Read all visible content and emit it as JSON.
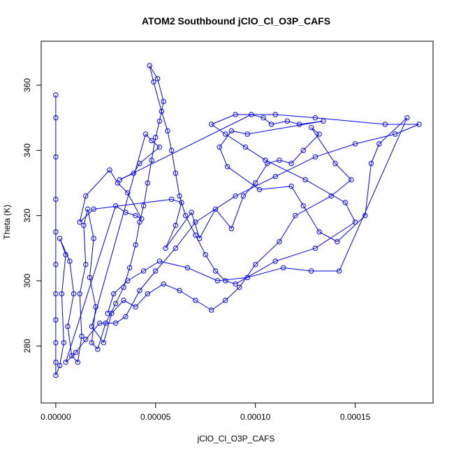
{
  "chart_data": {
    "type": "scatter",
    "title": "ATOM2 Southbound jClO_Cl_O3P_CAFS",
    "xlabel": "jClO_Cl_O3P_CAFS",
    "ylabel": "Theta (K)",
    "xlim": [
      -7.3e-06,
      0.000189
    ],
    "ylim": [
      262.5,
      373.5
    ],
    "xticks": [
      0,
      5e-05,
      0.0001,
      0.00015
    ],
    "xtick_labels": [
      "0.00000",
      "0.00005",
      "0.00010",
      "0.00015"
    ],
    "yticks": [
      280,
      300,
      320,
      340,
      360
    ],
    "ytick_labels": [
      "280",
      "300",
      "320",
      "340",
      "360"
    ],
    "grid": false,
    "legend": "none",
    "style": {
      "marker": "open-circle",
      "connected": true,
      "color": "#0000ff"
    },
    "series": [
      {
        "name": "",
        "points": [
          [
            0.0,
            357
          ],
          [
            0.0,
            350
          ],
          [
            0.0,
            338
          ],
          [
            0.0,
            325
          ],
          [
            0.0,
            315
          ],
          [
            0.0,
            305
          ],
          [
            0.0,
            296
          ],
          [
            0.0,
            288
          ],
          [
            0.0,
            281
          ],
          [
            0.0,
            275
          ],
          [
            0.0,
            271
          ],
          [
            2e-06,
            274
          ],
          [
            4e-06,
            281
          ],
          [
            3e-06,
            296
          ],
          [
            5e-06,
            308
          ],
          [
            2e-06,
            313
          ],
          [
            7e-06,
            306
          ],
          [
            9e-06,
            296
          ],
          [
            6e-06,
            286
          ],
          [
            8e-06,
            277
          ],
          [
            1.1e-05,
            275
          ],
          [
            1.3e-05,
            283
          ],
          [
            1.2e-05,
            296
          ],
          [
            1.5e-05,
            305
          ],
          [
            1.4e-05,
            317
          ],
          [
            1.6e-05,
            322
          ],
          [
            1.9e-05,
            313
          ],
          [
            1.7e-05,
            301
          ],
          [
            2e-05,
            292
          ],
          [
            1.8e-05,
            281
          ],
          [
            2.1e-05,
            279
          ],
          [
            2.5e-05,
            287
          ],
          [
            3e-05,
            293
          ],
          [
            3.4e-05,
            298
          ],
          [
            3.7e-05,
            304
          ],
          [
            4e-05,
            311
          ],
          [
            4.2e-05,
            318
          ],
          [
            4.4e-05,
            323
          ],
          [
            4.6e-05,
            330
          ],
          [
            4.8e-05,
            337
          ],
          [
            5e-05,
            344
          ],
          [
            5.2e-05,
            349
          ],
          [
            5.4e-05,
            355
          ],
          [
            5.1e-05,
            362
          ],
          [
            4.7e-05,
            366
          ],
          [
            4.9e-05,
            361
          ],
          [
            5.3e-05,
            352
          ],
          [
            5.6e-05,
            346
          ],
          [
            5.8e-05,
            340
          ],
          [
            6e-05,
            333
          ],
          [
            6.2e-05,
            326
          ],
          [
            6.5e-05,
            320
          ],
          [
            7e-05,
            314
          ],
          [
            7.5e-05,
            308
          ],
          [
            8e-05,
            303
          ],
          [
            8.5e-05,
            300
          ],
          [
            9e-05,
            299
          ],
          [
            0.00011,
            306
          ],
          [
            0.00013,
            310
          ],
          [
            0.00015,
            318
          ],
          [
            0.000145,
            324
          ],
          [
            0.000125,
            331
          ],
          [
            0.000105,
            337
          ],
          [
            9.5e-05,
            341
          ],
          [
            8.5e-05,
            345
          ],
          [
            7.8e-05,
            348
          ],
          [
            9e-05,
            351
          ],
          [
            0.00011,
            351
          ],
          [
            0.00013,
            350
          ],
          [
            0.000165,
            348
          ],
          [
            0.000182,
            348
          ],
          [
            0.00017,
            345
          ],
          [
            0.00015,
            342
          ],
          [
            0.00013,
            338
          ],
          [
            0.00011,
            332
          ],
          [
            9e-05,
            326
          ],
          [
            7e-05,
            318
          ],
          [
            6e-05,
            310
          ],
          [
            5e-05,
            303
          ],
          [
            4.2e-05,
            297
          ],
          [
            3.5e-05,
            289
          ],
          [
            3e-05,
            287
          ],
          [
            2.2e-05,
            287
          ],
          [
            1.5e-05,
            282
          ],
          [
            1e-05,
            278
          ],
          [
            5e-06,
            275
          ],
          [
            3e-05,
            323
          ],
          [
            3.5e-05,
            321
          ],
          [
            4e-05,
            320
          ],
          [
            4.3e-05,
            319
          ],
          [
            3.6e-05,
            327
          ],
          [
            3.1e-05,
            330
          ],
          [
            2.7e-05,
            334
          ],
          [
            1.5e-05,
            326
          ],
          [
            1.2e-05,
            318
          ],
          [
            1.9e-05,
            322
          ],
          [
            5.8e-05,
            325
          ],
          [
            6.3e-05,
            324
          ],
          [
            6e-05,
            317
          ],
          [
            5.5e-05,
            310
          ],
          [
            6.8e-05,
            321
          ],
          [
            7.2e-05,
            313
          ],
          [
            8e-05,
            322
          ],
          [
            8.8e-05,
            316
          ],
          [
            9.4e-05,
            326
          ],
          [
            0.0001,
            330
          ],
          [
            0.000106,
            336
          ],
          [
            0.000112,
            337
          ],
          [
            0.000118,
            336
          ],
          [
            0.000124,
            340
          ],
          [
            0.000132,
            345
          ],
          [
            0.000128,
            347
          ],
          [
            0.00014,
            336
          ],
          [
            0.000148,
            331
          ],
          [
            0.000138,
            326
          ],
          [
            0.00012,
            320
          ],
          [
            0.000112,
            312
          ],
          [
            0.0001,
            305
          ],
          [
            9.2e-05,
            298
          ],
          [
            8.5e-05,
            294
          ],
          [
            7.8e-05,
            291
          ],
          [
            7e-05,
            294
          ],
          [
            6.2e-05,
            297
          ],
          [
            5.4e-05,
            299
          ],
          [
            4.6e-05,
            296
          ],
          [
            4e-05,
            292
          ],
          [
            3.4e-05,
            294
          ],
          [
            2.8e-05,
            290
          ],
          [
            2.4e-05,
            281
          ],
          [
            1.8e-05,
            286
          ],
          [
            4.5e-05,
            345
          ],
          [
            4.8e-05,
            343
          ],
          [
            5.2e-05,
            341
          ],
          [
            4.2e-05,
            336
          ],
          [
            3.9e-05,
            333
          ],
          [
            3.2e-05,
            331
          ],
          [
            9.8e-05,
            351
          ],
          [
            0.000104,
            350
          ],
          [
            0.000108,
            348
          ],
          [
            0.000116,
            349
          ],
          [
            0.000122,
            348
          ],
          [
            0.000134,
            349
          ],
          [
            9.6e-05,
            345
          ],
          [
            8.8e-05,
            346
          ],
          [
            8.2e-05,
            341
          ],
          [
            8.6e-05,
            335
          ],
          [
            0.000102,
            328
          ],
          [
            0.000118,
            329
          ],
          [
            0.000124,
            323
          ],
          [
            0.000132,
            315
          ],
          [
            0.000141,
            312
          ],
          [
            0.000155,
            320
          ],
          [
            0.000158,
            336
          ],
          [
            0.000162,
            342
          ],
          [
            0.000176,
            350
          ],
          [
            0.000142,
            303
          ],
          [
            0.000128,
            303
          ],
          [
            0.000114,
            304
          ],
          [
            9.6e-05,
            301
          ],
          [
            8.1e-05,
            300
          ],
          [
            6.6e-05,
            304
          ],
          [
            5.2e-05,
            306
          ],
          [
            4.4e-05,
            303
          ],
          [
            3.6e-05,
            300
          ],
          [
            2.9e-05,
            296
          ],
          [
            2.6e-05,
            290
          ]
        ]
      }
    ]
  }
}
